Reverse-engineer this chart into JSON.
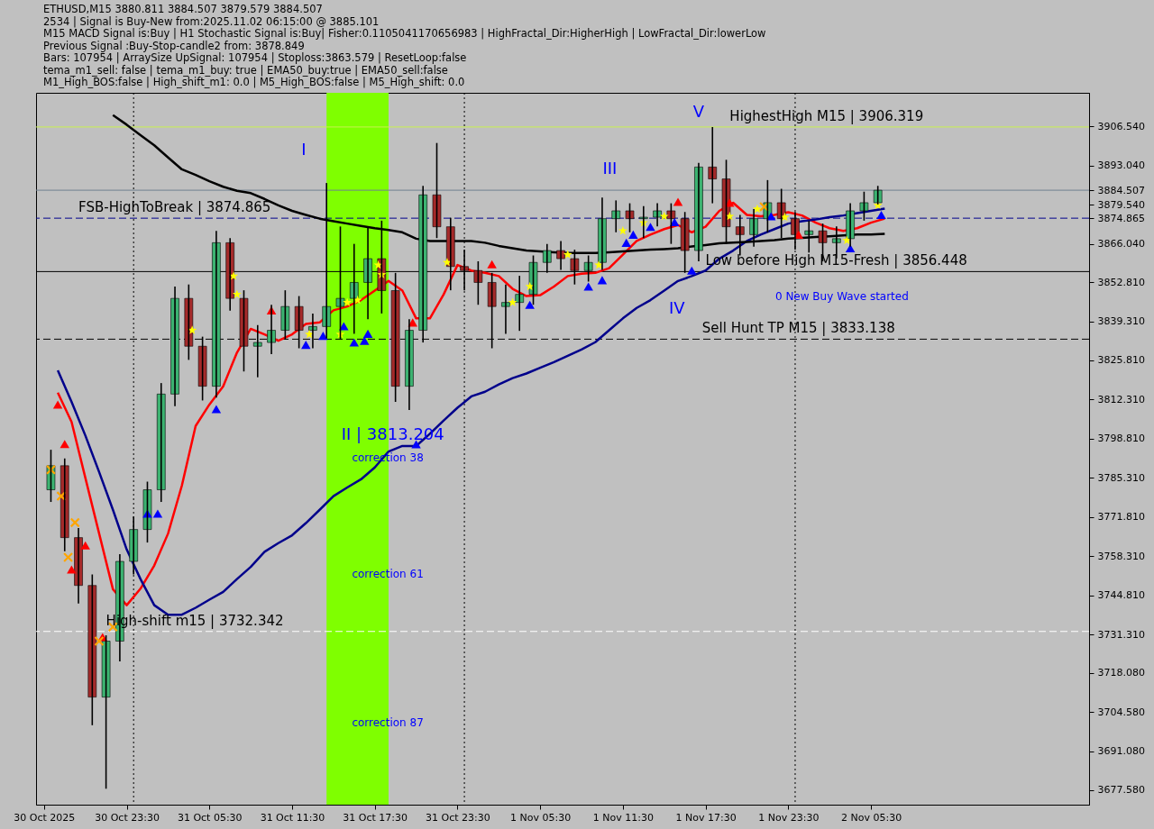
{
  "chart_data": {
    "type": "candlestick",
    "x": [
      "2025-10-30T18:00",
      "2025-10-30T19:00",
      "2025-10-30T20:00",
      "2025-10-30T21:00",
      "2025-10-30T22:00",
      "2025-10-30T23:00",
      "2025-10-31T00:00",
      "2025-10-31T01:00",
      "2025-10-31T02:00",
      "2025-10-31T03:00",
      "2025-10-31T04:00",
      "2025-10-31T05:00",
      "2025-10-31T06:00",
      "2025-10-31T07:00",
      "2025-10-31T08:00",
      "2025-10-31T09:00",
      "2025-10-31T10:00",
      "2025-10-31T11:00",
      "2025-10-31T12:00",
      "2025-10-31T13:00",
      "2025-10-31T14:00",
      "2025-10-31T15:00",
      "2025-10-31T16:00",
      "2025-10-31T17:00",
      "2025-10-31T18:00",
      "2025-10-31T19:00",
      "2025-10-31T20:00",
      "2025-10-31T21:00",
      "2025-10-31T22:00",
      "2025-10-31T23:00",
      "2025-11-01T00:00",
      "2025-11-01T01:00",
      "2025-11-01T02:00",
      "2025-11-01T03:00",
      "2025-11-01T04:00",
      "2025-11-01T05:00",
      "2025-11-01T06:00",
      "2025-11-01T07:00",
      "2025-11-01T08:00",
      "2025-11-01T09:00",
      "2025-11-01T10:00",
      "2025-11-01T11:00",
      "2025-11-01T12:00",
      "2025-11-01T13:00",
      "2025-11-01T14:00",
      "2025-11-01T15:00",
      "2025-11-01T16:00",
      "2025-11-01T17:00",
      "2025-11-01T18:00",
      "2025-11-01T19:00",
      "2025-11-01T20:00",
      "2025-11-01T21:00",
      "2025-11-01T22:00",
      "2025-11-01T23:00",
      "2025-11-02T00:00",
      "2025-11-02T01:00",
      "2025-11-02T02:00",
      "2025-11-02T03:00",
      "2025-11-02T04:00",
      "2025-11-02T05:00",
      "2025-11-02T06:00"
    ],
    "ohlc": [
      [
        3781.2,
        3795,
        3777,
        3789.5
      ],
      [
        3789.5,
        3792,
        3760,
        3764.7
      ],
      [
        3764.7,
        3768,
        3742,
        3748.2
      ],
      [
        3748.2,
        3752,
        3700,
        3709.7
      ],
      [
        3709.7,
        3731,
        3678.1,
        3729.0
      ],
      [
        3729.0,
        3759,
        3722,
        3756.5
      ],
      [
        3756.5,
        3772,
        3752,
        3767.5
      ],
      [
        3767.5,
        3784,
        3763,
        3781.2
      ],
      [
        3781.2,
        3818,
        3777,
        3814.2
      ],
      [
        3814.2,
        3851.3,
        3810,
        3847.2
      ],
      [
        3847.2,
        3852,
        3826,
        3830.7
      ],
      [
        3830.7,
        3834,
        3812,
        3816.9
      ],
      [
        3816.9,
        3870.5,
        3813,
        3866.4
      ],
      [
        3866.4,
        3868,
        3843,
        3847.2
      ],
      [
        3847.2,
        3850,
        3822,
        3830.7
      ],
      [
        3830.7,
        3838,
        3820,
        3832.0
      ],
      [
        3832.0,
        3845,
        3828,
        3836.2
      ],
      [
        3836.2,
        3850,
        3833,
        3844.4
      ],
      [
        3844.4,
        3848,
        3830,
        3836.2
      ],
      [
        3836.2,
        3842,
        3830,
        3837.5
      ],
      [
        3837.5,
        3887.0,
        3833.4,
        3844.4
      ],
      [
        3844.4,
        3872,
        3833,
        3847.2
      ],
      [
        3847.2,
        3866,
        3835,
        3852.7
      ],
      [
        3852.7,
        3872,
        3840,
        3860.9
      ],
      [
        3860.9,
        3874,
        3842,
        3849.9
      ],
      [
        3849.9,
        3856,
        3811.5,
        3816.9
      ],
      [
        3816.9,
        3840,
        3808.7,
        3836.2
      ],
      [
        3836.2,
        3886,
        3832,
        3882.9
      ],
      [
        3882.9,
        3900.8,
        3868,
        3871.9
      ],
      [
        3871.9,
        3875,
        3850,
        3858.2
      ],
      [
        3858.2,
        3864,
        3850,
        3856.8
      ],
      [
        3856.8,
        3860,
        3845,
        3852.7
      ],
      [
        3852.7,
        3856,
        3830,
        3844.4
      ],
      [
        3844.4,
        3852,
        3835,
        3845.8
      ],
      [
        3845.8,
        3855,
        3836,
        3848.6
      ],
      [
        3848.6,
        3862,
        3845,
        3859.6
      ],
      [
        3859.6,
        3866,
        3856,
        3863.7
      ],
      [
        3863.7,
        3867,
        3857,
        3860.9
      ],
      [
        3860.9,
        3864,
        3852,
        3856.8
      ],
      [
        3856.8,
        3862,
        3853,
        3859.6
      ],
      [
        3859.6,
        3882,
        3857,
        3874.7
      ],
      [
        3874.7,
        3881,
        3870,
        3877.4
      ],
      [
        3877.4,
        3880,
        3870,
        3874.7
      ],
      [
        3874.7,
        3879,
        3868,
        3875.2
      ],
      [
        3875.2,
        3880,
        3872,
        3877.4
      ],
      [
        3877.4,
        3880,
        3866,
        3874.7
      ],
      [
        3874.7,
        3877,
        3856,
        3863.7
      ],
      [
        3863.7,
        3893.9,
        3860,
        3892.5
      ],
      [
        3892.5,
        3906.3,
        3880,
        3888.4
      ],
      [
        3888.4,
        3895,
        3866,
        3871.9
      ],
      [
        3871.9,
        3876,
        3862,
        3869.2
      ],
      [
        3869.2,
        3878,
        3865,
        3874.7
      ],
      [
        3874.7,
        3888,
        3870,
        3880.2
      ],
      [
        3880.2,
        3885,
        3868,
        3874.7
      ],
      [
        3874.7,
        3877,
        3864,
        3869.2
      ],
      [
        3869.2,
        3874,
        3863,
        3870.5
      ],
      [
        3870.5,
        3873,
        3860,
        3866.4
      ],
      [
        3866.4,
        3872,
        3861,
        3867.8
      ],
      [
        3867.8,
        3880,
        3865,
        3877.4
      ],
      [
        3877.4,
        3884,
        3874,
        3880.2
      ],
      [
        3880.2,
        3886,
        3879.6,
        3884.5
      ]
    ],
    "colors": [
      "#3cb371",
      "#a52a2a",
      "#a52a2a",
      "#a52a2a",
      "#3cb371",
      "#3cb371",
      "#3cb371",
      "#3cb371",
      "#3cb371",
      "#3cb371",
      "#a52a2a",
      "#a52a2a",
      "#3cb371",
      "#a52a2a",
      "#a52a2a",
      "#3cb371",
      "#3cb371",
      "#3cb371",
      "#a52a2a",
      "#3cb371",
      "#3cb371",
      "#3cb371",
      "#3cb371",
      "#3cb371",
      "#a52a2a",
      "#a52a2a",
      "#3cb371",
      "#3cb371",
      "#a52a2a",
      "#a52a2a",
      "#a52a2a",
      "#a52a2a",
      "#a52a2a",
      "#3cb371",
      "#3cb371",
      "#3cb371",
      "#3cb371",
      "#a52a2a",
      "#a52a2a",
      "#3cb371",
      "#3cb371",
      "#3cb371",
      "#a52a2a",
      "#3cb371",
      "#3cb371",
      "#a52a2a",
      "#a52a2a",
      "#3cb371",
      "#a52a2a",
      "#a52a2a",
      "#a52a2a",
      "#3cb371",
      "#3cb371",
      "#a52a2a",
      "#a52a2a",
      "#3cb371",
      "#a52a2a",
      "#3cb371",
      "#3cb371",
      "#3cb371",
      "#3cb371"
    ],
    "series": [
      {
        "type": "line",
        "color": "#ff0000",
        "x": [
          "2025-10-30T18:30",
          "2025-10-30T19:30",
          "2025-10-30T20:30",
          "2025-10-30T21:30",
          "2025-10-30T22:30",
          "2025-10-30T23:30",
          "2025-10-31T00:30",
          "2025-10-31T01:30",
          "2025-10-31T02:30",
          "2025-10-31T03:30",
          "2025-10-31T04:30",
          "2025-10-31T05:30",
          "2025-10-31T06:30",
          "2025-10-31T07:30",
          "2025-10-31T08:30",
          "2025-10-31T09:30",
          "2025-10-31T10:30",
          "2025-10-31T11:30",
          "2025-10-31T12:30",
          "2025-10-31T13:30",
          "2025-10-31T14:30",
          "2025-10-31T15:30",
          "2025-10-31T16:30",
          "2025-10-31T17:30",
          "2025-10-31T18:30",
          "2025-10-31T19:30",
          "2025-10-31T20:30",
          "2025-10-31T21:30",
          "2025-10-31T22:30",
          "2025-10-31T23:30",
          "2025-11-01T00:30",
          "2025-11-01T01:30",
          "2025-11-01T02:30",
          "2025-11-01T03:30",
          "2025-11-01T04:30",
          "2025-11-01T05:30",
          "2025-11-01T06:30",
          "2025-11-01T07:30",
          "2025-11-01T08:30",
          "2025-11-01T09:30",
          "2025-11-01T10:30",
          "2025-11-01T11:30",
          "2025-11-01T12:30",
          "2025-11-01T13:30",
          "2025-11-01T14:30",
          "2025-11-01T15:30",
          "2025-11-01T16:30",
          "2025-11-01T17:30",
          "2025-11-01T18:30",
          "2025-11-01T19:30",
          "2025-11-01T20:30",
          "2025-11-01T21:30",
          "2025-11-01T22:30",
          "2025-11-01T23:30",
          "2025-11-02T00:30",
          "2025-11-02T01:30",
          "2025-11-02T02:30",
          "2025-11-02T03:30",
          "2025-11-02T04:30",
          "2025-11-02T05:30",
          "2025-11-02T06:30"
        ],
        "values": [
          3814.7,
          3804.6,
          3785.3,
          3766.1,
          3746.9,
          3741.4,
          3747.1,
          3755.1,
          3766.1,
          3782.6,
          3803.2,
          3810.6,
          3816.9,
          3828.5,
          3836.7,
          3834.8,
          3832.6,
          3834.8,
          3838.4,
          3838.9,
          3843.1,
          3844.4,
          3846.6,
          3849.9,
          3853.2,
          3849.9,
          3840.3,
          3840.3,
          3848.6,
          3858.7,
          3856.8,
          3856.0,
          3854.9,
          3850.5,
          3848.0,
          3848.3,
          3851.3,
          3854.9,
          3855.7,
          3856.0,
          3857.6,
          3862.3,
          3867.0,
          3869.2,
          3871.1,
          3872.5,
          3870.0,
          3871.9,
          3877.4,
          3880.2,
          3876.0,
          3875.5,
          3876.0,
          3876.9,
          3875.8,
          3873.3,
          3871.4,
          3870.5,
          3871.4,
          3873.3,
          3874.7
        ]
      },
      {
        "type": "line",
        "color": "#00008b",
        "x": [
          "2025-10-30T18:30",
          "2025-10-30T19:30",
          "2025-10-30T20:30",
          "2025-10-30T21:30",
          "2025-10-30T22:30",
          "2025-10-30T23:30",
          "2025-10-31T00:30",
          "2025-10-31T01:30",
          "2025-10-31T02:30",
          "2025-10-31T03:30",
          "2025-10-31T04:30",
          "2025-10-31T05:30",
          "2025-10-31T06:30",
          "2025-10-31T07:30",
          "2025-10-31T08:30",
          "2025-10-31T09:30",
          "2025-10-31T10:30",
          "2025-10-31T11:30",
          "2025-10-31T12:30",
          "2025-10-31T13:30",
          "2025-10-31T14:30",
          "2025-10-31T15:30",
          "2025-10-31T16:30",
          "2025-10-31T17:30",
          "2025-10-31T18:30",
          "2025-10-31T19:30",
          "2025-10-31T20:30",
          "2025-10-31T21:30",
          "2025-10-31T22:30",
          "2025-10-31T23:30",
          "2025-11-01T00:30",
          "2025-11-01T01:30",
          "2025-11-01T02:30",
          "2025-11-01T03:30",
          "2025-11-01T04:30",
          "2025-11-01T05:30",
          "2025-11-01T06:30",
          "2025-11-01T07:30",
          "2025-11-01T08:30",
          "2025-11-01T09:30",
          "2025-11-01T10:30",
          "2025-11-01T11:30",
          "2025-11-01T12:30",
          "2025-11-01T13:30",
          "2025-11-01T14:30",
          "2025-11-01T15:30",
          "2025-11-01T16:30",
          "2025-11-01T17:30",
          "2025-11-01T18:30",
          "2025-11-01T19:30",
          "2025-11-01T20:30",
          "2025-11-01T21:30",
          "2025-11-01T22:30",
          "2025-11-01T23:30",
          "2025-11-02T00:30",
          "2025-11-02T01:30",
          "2025-11-02T02:30",
          "2025-11-02T03:30",
          "2025-11-02T04:30",
          "2025-11-02T05:30",
          "2025-11-02T06:30"
        ],
        "values": [
          3822.4,
          3811.5,
          3799.9,
          3787.3,
          3774.3,
          3760.6,
          3750.4,
          3741.4,
          3738.1,
          3738.1,
          3740.5,
          3743.3,
          3746.0,
          3750.4,
          3754.6,
          3759.8,
          3762.8,
          3765.5,
          3769.7,
          3774.3,
          3779.0,
          3782.0,
          3784.8,
          3788.9,
          3794.4,
          3796.3,
          3796.3,
          3800.5,
          3805.1,
          3809.5,
          3813.4,
          3815.0,
          3817.5,
          3819.7,
          3821.3,
          3823.3,
          3825.2,
          3827.4,
          3829.6,
          3832.1,
          3836.2,
          3840.3,
          3843.9,
          3846.6,
          3849.9,
          3853.2,
          3854.9,
          3856.8,
          3860.9,
          3863.7,
          3867.0,
          3869.2,
          3871.1,
          3873.0,
          3873.8,
          3874.4,
          3875.2,
          3875.8,
          3876.6,
          3877.4,
          3878.2
        ]
      },
      {
        "type": "line",
        "color": "#000000",
        "x": [
          "2025-10-30T22:30",
          "2025-10-30T23:30",
          "2025-10-31T00:30",
          "2025-10-31T01:30",
          "2025-10-31T02:30",
          "2025-10-31T03:30",
          "2025-10-31T04:30",
          "2025-10-31T05:30",
          "2025-10-31T06:30",
          "2025-10-31T07:30",
          "2025-10-31T08:30",
          "2025-10-31T09:30",
          "2025-10-31T10:30",
          "2025-10-31T11:30",
          "2025-10-31T12:30",
          "2025-10-31T13:30",
          "2025-10-31T14:30",
          "2025-10-31T15:30",
          "2025-10-31T16:30",
          "2025-10-31T17:30",
          "2025-10-31T18:30",
          "2025-10-31T19:30",
          "2025-10-31T20:30",
          "2025-10-31T21:30",
          "2025-10-31T22:30",
          "2025-10-31T23:30",
          "2025-11-01T00:30",
          "2025-11-01T01:30",
          "2025-11-01T02:30",
          "2025-11-01T03:30",
          "2025-11-01T04:30",
          "2025-11-01T05:30",
          "2025-11-01T06:30",
          "2025-11-01T07:30",
          "2025-11-01T08:30",
          "2025-11-01T09:30",
          "2025-11-01T10:30",
          "2025-11-01T11:30",
          "2025-11-01T12:30",
          "2025-11-01T13:30",
          "2025-11-01T14:30",
          "2025-11-01T15:30",
          "2025-11-01T16:30",
          "2025-11-01T17:30",
          "2025-11-01T18:30",
          "2025-11-01T19:30",
          "2025-11-01T20:30",
          "2025-11-01T21:30",
          "2025-11-01T22:30",
          "2025-11-01T23:30",
          "2025-11-02T00:30",
          "2025-11-02T01:30",
          "2025-11-02T02:30",
          "2025-11-02T03:30",
          "2025-11-02T04:30",
          "2025-11-02T05:30",
          "2025-11-02T06:30"
        ],
        "values": [
          3910.4,
          3907.1,
          3903.5,
          3900.0,
          3895.8,
          3891.7,
          3889.8,
          3887.6,
          3885.7,
          3884.3,
          3883.5,
          3881.5,
          3879.3,
          3877.4,
          3876.0,
          3874.7,
          3873.8,
          3873.0,
          3872.2,
          3871.4,
          3870.8,
          3870.0,
          3867.8,
          3867.0,
          3867.0,
          3867.0,
          3867.0,
          3866.4,
          3865.3,
          3864.5,
          3863.7,
          3863.4,
          3863.1,
          3862.9,
          3862.9,
          3862.9,
          3863.1,
          3863.4,
          3863.7,
          3864.0,
          3864.2,
          3864.5,
          3865.1,
          3865.6,
          3866.2,
          3866.4,
          3866.7,
          3867.0,
          3867.3,
          3867.8,
          3868.1,
          3868.4,
          3868.6,
          3868.9,
          3869.2,
          3869.2,
          3869.5
        ]
      },
      {
        "type": "scatter",
        "marker": "star",
        "color": "#ffff00",
        "x": [
          "2025-10-31T04:15",
          "2025-10-31T07:15",
          "2025-10-31T07:30",
          "2025-10-31T12:45",
          "2025-10-31T15:00",
          "2025-10-31T15:30",
          "2025-10-31T16:15",
          "2025-10-31T17:45",
          "2025-10-31T18:00",
          "2025-10-31T22:45",
          "2025-11-01T03:30",
          "2025-11-01T04:45",
          "2025-11-01T07:30",
          "2025-11-01T09:45",
          "2025-11-01T11:30",
          "2025-11-01T13:00",
          "2025-11-01T14:30",
          "2025-11-01T19:15",
          "2025-11-01T21:15",
          "2025-11-01T23:15",
          "2025-11-02T03:45",
          "2025-11-02T06:00"
        ],
        "values": [
          3836.2,
          3854.9,
          3848.6,
          3834.8,
          3834.8,
          3845.8,
          3846.6,
          3858.7,
          3855.4,
          3859.6,
          3845.8,
          3851.3,
          3862.3,
          3858.7,
          3870.5,
          3873.3,
          3875.5,
          3875.5,
          3878.0,
          3875.2,
          3867.2,
          3879.3
        ]
      },
      {
        "type": "scatter",
        "marker": "triangle",
        "color": "#0000ff",
        "x": [
          "2025-10-31T01:00",
          "2025-10-31T01:45",
          "2025-10-31T06:00",
          "2025-10-31T12:30",
          "2025-10-31T13:45",
          "2025-10-31T15:15",
          "2025-10-31T16:00",
          "2025-10-31T16:45",
          "2025-10-31T17:00",
          "2025-10-31T20:30",
          "2025-11-01T04:45",
          "2025-11-01T09:00",
          "2025-11-01T10:00",
          "2025-11-01T11:45",
          "2025-11-01T12:15",
          "2025-11-01T13:30",
          "2025-11-01T15:15",
          "2025-11-01T16:30",
          "2025-11-01T22:15",
          "2025-11-02T04:00",
          "2025-11-02T06:15"
        ],
        "values": [
          3773.0,
          3773.0,
          3809.0,
          3831.2,
          3834.3,
          3837.6,
          3832.0,
          3832.6,
          3835.0,
          3796.9,
          3845.0,
          3851.3,
          3853.5,
          3866.4,
          3869.2,
          3871.9,
          3873.5,
          3856.8,
          3875.5,
          3864.5,
          3876.0
        ]
      },
      {
        "type": "scatter",
        "marker": "triangle",
        "color": "#ff0000",
        "x": [
          "2025-10-30T18:30",
          "2025-10-30T19:00",
          "2025-10-30T19:30",
          "2025-10-30T20:30",
          "2025-10-30T21:45",
          "2025-10-31T10:00",
          "2025-10-31T20:15",
          "2025-11-01T02:00",
          "2025-11-01T15:30",
          "2025-11-01T19:15",
          "2025-11-02T00:15"
        ],
        "values": [
          3810.6,
          3797.0,
          3753.7,
          3762.0,
          3730.4,
          3843.1,
          3838.9,
          3859.0,
          3880.5,
          3880.2,
          3869.2
        ]
      },
      {
        "type": "scatter",
        "marker": "cross",
        "color": "#ffa500",
        "x": [
          "2025-10-30T18:00",
          "2025-10-30T18:45",
          "2025-10-30T19:15",
          "2025-10-30T19:45",
          "2025-10-30T21:30",
          "2025-10-30T22:30",
          "2025-11-01T21:45"
        ],
        "values": [
          3788.1,
          3779.0,
          3757.9,
          3769.9,
          3729.0,
          3733.9,
          3878.8
        ]
      }
    ],
    "xlim": [
      "2025-10-30T17:15",
      "2025-11-02T21:00"
    ],
    "xticks": [
      {
        "value": "2025-10-30T17:30",
        "label": "30 Oct 2025"
      },
      {
        "value": "2025-10-30T23:30",
        "label": "30 Oct 23:30"
      },
      {
        "value": "2025-10-31T05:30",
        "label": "31 Oct 05:30"
      },
      {
        "value": "2025-10-31T11:30",
        "label": "31 Oct 11:30"
      },
      {
        "value": "2025-10-31T17:30",
        "label": "31 Oct 17:30"
      },
      {
        "value": "2025-10-31T23:30",
        "label": "31 Oct 23:30"
      },
      {
        "value": "2025-11-01T05:30",
        "label": "1 Nov 05:30"
      },
      {
        "value": "2025-11-01T11:30",
        "label": "1 Nov 11:30"
      },
      {
        "value": "2025-11-01T17:30",
        "label": "1 Nov 17:30"
      },
      {
        "value": "2025-11-01T23:30",
        "label": "1 Nov 23:30"
      },
      {
        "value": "2025-11-02T05:30",
        "label": "2 Nov 05:30"
      }
    ],
    "ylim": [
      3672.6,
      3918.1
    ],
    "yticks": [
      {
        "value": 3677.58,
        "label": "3677.580"
      },
      {
        "value": 3691.08,
        "label": "3691.080"
      },
      {
        "value": 3704.58,
        "label": "3704.580"
      },
      {
        "value": 3718.08,
        "label": "3718.080"
      },
      {
        "value": 3731.31,
        "label": "3731.310"
      },
      {
        "value": 3744.81,
        "label": "3744.810"
      },
      {
        "value": 3758.31,
        "label": "3758.310"
      },
      {
        "value": 3771.81,
        "label": "3771.810"
      },
      {
        "value": 3785.31,
        "label": "3785.310"
      },
      {
        "value": 3798.81,
        "label": "3798.810"
      },
      {
        "value": 3812.31,
        "label": "3812.310"
      },
      {
        "value": 3825.81,
        "label": "3825.810"
      },
      {
        "value": 3839.31,
        "label": "3839.310"
      },
      {
        "value": 3852.81,
        "label": "3852.810"
      },
      {
        "value": 3866.04,
        "label": "3866.040"
      },
      {
        "value": 3879.54,
        "label": "3879.540"
      },
      {
        "value": 3893.04,
        "label": "3893.040"
      },
      {
        "value": 3906.54,
        "label": "3906.540"
      },
      3884.507,
      3874.865
    ],
    "bands": [
      {
        "axis": "x",
        "from": "2025-10-31T14:00",
        "to": "2025-10-31T18:30",
        "color": "#7fff00"
      }
    ],
    "ref_lines": [
      {
        "axis": "y",
        "value": 3874.865,
        "color": "#00008b",
        "line_style": "dashed"
      },
      {
        "axis": "y",
        "value": 3884.507,
        "color": "#708090",
        "line_style": "solid"
      },
      {
        "axis": "y",
        "value": 3906.319,
        "color": "#c8f050",
        "line_style": "solid"
      },
      {
        "axis": "y",
        "value": 3856.448,
        "color": "#000000",
        "line_style": "solid"
      },
      {
        "axis": "y",
        "value": 3833.138,
        "color": "#000000",
        "line_style": "dashed"
      },
      {
        "axis": "y",
        "value": 3732.342,
        "color": "#ffffff",
        "line_style": "dashed"
      },
      {
        "axis": "x",
        "value": "2025-10-31T00:00",
        "color": "#000000",
        "line_style": "dotted"
      },
      {
        "axis": "x",
        "value": "2025-11-01T00:00",
        "color": "#000000",
        "line_style": "dotted"
      },
      {
        "axis": "x",
        "value": "2025-11-02T00:00",
        "color": "#000000",
        "line_style": "dotted"
      }
    ],
    "annotations": [
      "ETHUSD,M15  3880.811 3884.507 3879.579 3884.507",
      "2534 | Signal is Buy-New from:2025.11.02 06:15:00 @ 3885.101",
      "M15 MACD Signal is:Buy | H1 Stochastic Signal is:Buy| Fisher:0.1105041170656983 | HighFractal_Dir:HigherHigh | LowFractal_Dir:lowerLow",
      "Previous Signal :Buy-Stop-candle2 from: 3878.849",
      "Bars: 107954 | ArraySize UpSignal: 107954 | Stoploss:3863.579 | ResetLoop:false",
      "tema_m1_sell: false | tema_m1_buy: true | EMA50_buy:true | EMA50_sell:false",
      "M1_High_BOS:false | High_shift_m1: 0.0 | M5_High_BOS:false | M5_High_shift: 0.0",
      {
        "text": "FSB-HighToBreak | 3874.865",
        "x": "2025-10-30T20:00",
        "y": 3874.865
      },
      {
        "text": "HighestHigh   M15 | 3906.319",
        "x": "2025-11-01T19:15",
        "y": 3906.319
      },
      {
        "text": "Low before High   M15-Fresh | 3856.448",
        "x": "2025-11-01T17:30",
        "y": 3856.448
      },
      {
        "text": "Sell Hunt TP M15 | 3833.138",
        "x": "2025-11-01T17:15",
        "y": 3833.138
      },
      {
        "text": "High-shift m15 | 3732.342",
        "x": "2025-10-30T22:00",
        "y": 3732.342
      },
      "0 New Buy Wave started",
      "correction 61",
      "correction 87",
      "correction 38",
      "I",
      "II | 3813.204",
      "III",
      "IV",
      "V"
    ]
  }
}
